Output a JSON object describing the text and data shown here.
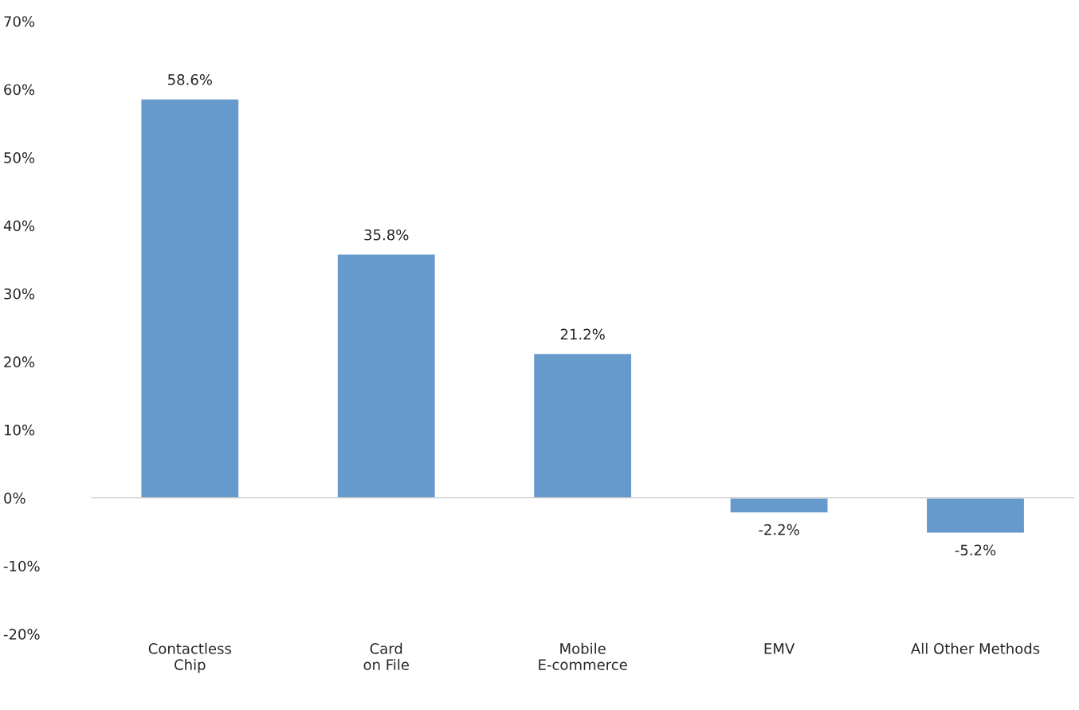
{
  "chart_data": {
    "type": "bar",
    "categories": [
      "Contactless\nChip",
      "Card\non File",
      "Mobile\nE-commerce",
      "EMV",
      "All Other Methods"
    ],
    "series": [
      {
        "color": "#6699cc",
        "values": [
          58.6,
          35.8,
          21.2,
          -2.2,
          -5.2
        ],
        "value_labels": [
          "58.6%",
          "35.8%",
          "21.2%",
          "-2.2%",
          "-5.2%"
        ]
      }
    ],
    "ylim": [
      -20,
      70
    ],
    "yticks": [
      {
        "value": -20,
        "label": "-20%"
      },
      {
        "value": -10,
        "label": "-10%"
      },
      {
        "value": 0,
        "label": "0%"
      },
      {
        "value": 10,
        "label": "10%"
      },
      {
        "value": 20,
        "label": "20%"
      },
      {
        "value": 30,
        "label": "30%"
      },
      {
        "value": 40,
        "label": "40%"
      },
      {
        "value": 50,
        "label": "50%"
      },
      {
        "value": 60,
        "label": "60%"
      },
      {
        "value": 70,
        "label": "70%"
      }
    ],
    "legend": false
  }
}
